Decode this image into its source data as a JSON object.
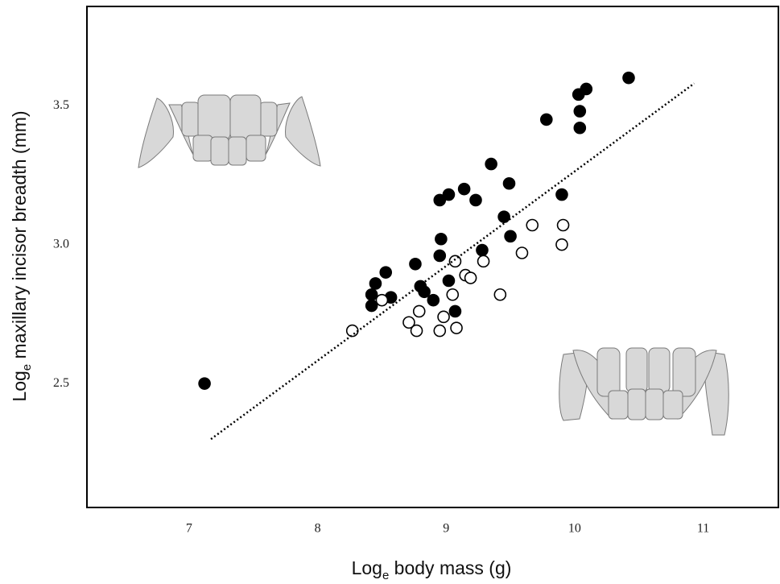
{
  "chart_data": {
    "type": "scatter",
    "xlabel": {
      "main": "Log",
      "sub": "e",
      "rest": " body mass (g)"
    },
    "ylabel": {
      "main": "Log",
      "sub": "e",
      "rest": " maxillary incisor breadth (mm)"
    },
    "xlim": [
      6.205,
      11.585
    ],
    "ylim": [
      2.054,
      3.857
    ],
    "xticks": [
      7,
      8,
      9,
      10,
      11
    ],
    "yticks": [
      2.5,
      {
        "value": 3,
        "label": "3.0"
      },
      3.5
    ],
    "grid": false,
    "series": [
      {
        "marker": "filled",
        "color": "#000000",
        "x": [
          7.12,
          8.42,
          8.42,
          8.45,
          8.53,
          8.57,
          8.76,
          8.8,
          8.83,
          8.9,
          8.95,
          8.96,
          8.95,
          9.02,
          9.02,
          9.07,
          9.14,
          9.23,
          9.28,
          9.35,
          9.45,
          9.49,
          9.5,
          9.78,
          9.9,
          10.03,
          10.04,
          10.04,
          10.09,
          10.42
        ],
        "values": [
          2.5,
          2.78,
          2.82,
          2.86,
          2.9,
          2.81,
          2.93,
          2.85,
          2.83,
          2.8,
          3.16,
          3.02,
          2.96,
          3.18,
          2.87,
          2.76,
          3.2,
          3.16,
          2.98,
          3.29,
          3.1,
          3.22,
          3.03,
          3.45,
          3.18,
          3.54,
          3.48,
          3.42,
          3.56,
          3.6
        ]
      },
      {
        "marker": "open",
        "color": "#000000",
        "x": [
          8.27,
          8.5,
          8.71,
          8.79,
          8.77,
          8.95,
          8.98,
          9.05,
          9.08,
          9.07,
          9.15,
          9.19,
          9.29,
          9.42,
          9.59,
          9.67,
          9.91,
          9.9
        ],
        "values": [
          2.69,
          2.8,
          2.72,
          2.76,
          2.69,
          2.69,
          2.74,
          2.82,
          2.7,
          2.94,
          2.89,
          2.88,
          2.94,
          2.82,
          2.97,
          3.07,
          3.07,
          3.0
        ]
      },
      {
        "marker": "dotted-line",
        "color": "#000000",
        "x": [
          7.17,
          10.93
        ],
        "values": [
          2.3,
          3.58
        ]
      }
    ]
  }
}
